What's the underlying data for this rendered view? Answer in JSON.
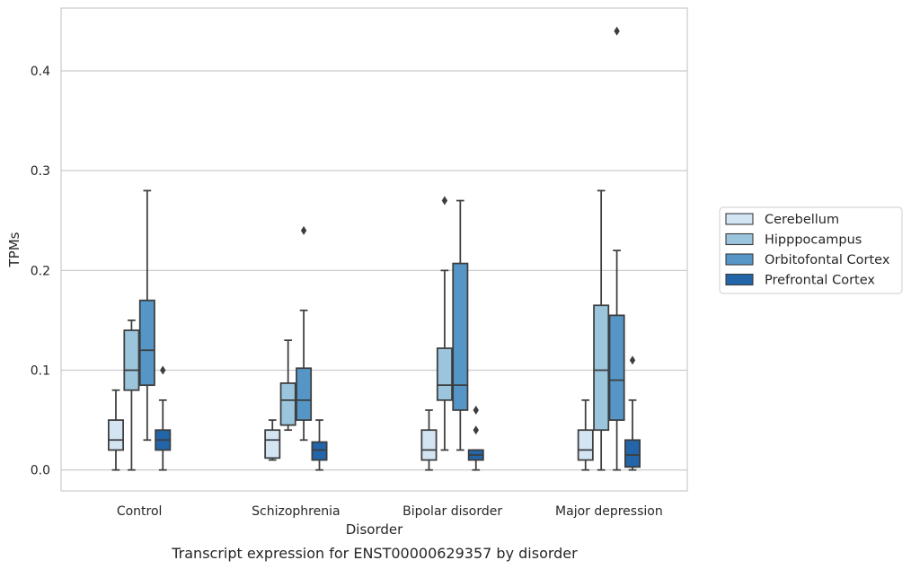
{
  "chart_data": {
    "type": "box",
    "xlabel": "Disorder",
    "ylabel": "TPMs",
    "caption": "Transcript expression for ENST00000629357 by disorder",
    "ylim": [
      -0.021,
      0.463
    ],
    "yticks": [
      "0.0",
      "0.1",
      "0.2",
      "0.3",
      "0.4"
    ],
    "grid": true,
    "legend_position": "right",
    "categories": [
      "Control",
      "Schizophrenia",
      "Bipolar disorder",
      "Major depression"
    ],
    "series": [
      {
        "name": "Cerebellum",
        "color": "#d3e4f3",
        "boxes": [
          {
            "whisker_low": 0.0,
            "q1": 0.02,
            "median": 0.03,
            "q3": 0.05,
            "whisker_high": 0.08,
            "outliers": []
          },
          {
            "whisker_low": 0.01,
            "q1": 0.012,
            "median": 0.03,
            "q3": 0.04,
            "whisker_high": 0.05,
            "outliers": []
          },
          {
            "whisker_low": 0.0,
            "q1": 0.01,
            "median": 0.02,
            "q3": 0.04,
            "whisker_high": 0.06,
            "outliers": []
          },
          {
            "whisker_low": 0.0,
            "q1": 0.01,
            "median": 0.02,
            "q3": 0.04,
            "whisker_high": 0.07,
            "outliers": []
          }
        ]
      },
      {
        "name": "Hipppocampus",
        "color": "#9ac5dd",
        "boxes": [
          {
            "whisker_low": 0.0,
            "q1": 0.08,
            "median": 0.1,
            "q3": 0.14,
            "whisker_high": 0.15,
            "outliers": []
          },
          {
            "whisker_low": 0.04,
            "q1": 0.045,
            "median": 0.07,
            "q3": 0.087,
            "whisker_high": 0.13,
            "outliers": []
          },
          {
            "whisker_low": 0.02,
            "q1": 0.07,
            "median": 0.085,
            "q3": 0.122,
            "whisker_high": 0.2,
            "outliers": [
              0.27
            ]
          },
          {
            "whisker_low": 0.0,
            "q1": 0.04,
            "median": 0.1,
            "q3": 0.165,
            "whisker_high": 0.28,
            "outliers": []
          }
        ]
      },
      {
        "name": "Orbitofontal Cortex",
        "color": "#5596c6",
        "boxes": [
          {
            "whisker_low": 0.03,
            "q1": 0.085,
            "median": 0.12,
            "q3": 0.17,
            "whisker_high": 0.28,
            "outliers": []
          },
          {
            "whisker_low": 0.03,
            "q1": 0.05,
            "median": 0.07,
            "q3": 0.102,
            "whisker_high": 0.16,
            "outliers": [
              0.24
            ]
          },
          {
            "whisker_low": 0.02,
            "q1": 0.06,
            "median": 0.085,
            "q3": 0.207,
            "whisker_high": 0.27,
            "outliers": []
          },
          {
            "whisker_low": 0.0,
            "q1": 0.05,
            "median": 0.09,
            "q3": 0.155,
            "whisker_high": 0.22,
            "outliers": [
              0.44
            ]
          }
        ]
      },
      {
        "name": "Prefrontal Cortex",
        "color": "#2365a9",
        "boxes": [
          {
            "whisker_low": 0.0,
            "q1": 0.02,
            "median": 0.03,
            "q3": 0.04,
            "whisker_high": 0.07,
            "outliers": [
              0.1
            ]
          },
          {
            "whisker_low": 0.0,
            "q1": 0.01,
            "median": 0.02,
            "q3": 0.028,
            "whisker_high": 0.05,
            "outliers": []
          },
          {
            "whisker_low": 0.0,
            "q1": 0.01,
            "median": 0.015,
            "q3": 0.02,
            "whisker_high": 0.02,
            "outliers": [
              0.04,
              0.06
            ]
          },
          {
            "whisker_low": 0.0,
            "q1": 0.003,
            "median": 0.015,
            "q3": 0.03,
            "whisker_high": 0.07,
            "outliers": [
              0.11
            ]
          }
        ]
      }
    ]
  }
}
